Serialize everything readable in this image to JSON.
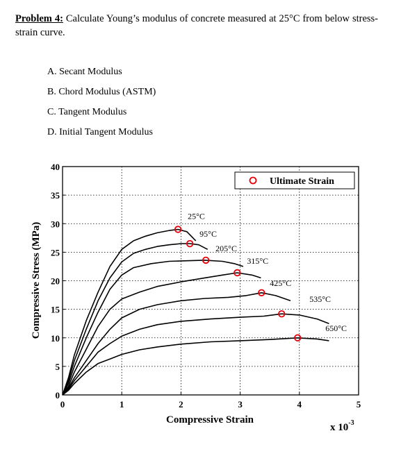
{
  "problem": {
    "lead": "Problem 4:",
    "text": " Calculate Young’s modulus of concrete measured at 25°C from below stress-strain curve."
  },
  "options": [
    "A. Secant Modulus",
    "B. Chord Modulus (ASTM)",
    "C. Tangent Modulus",
    "D. Initial Tangent Modulus"
  ],
  "chart_data": {
    "type": "line",
    "xlabel": "Compressive Strain",
    "ylabel": "Compressive Stress (MPa)",
    "x_multiplier": "x 10",
    "x_multiplier_exp": "-3",
    "xlim": [
      0,
      5
    ],
    "ylim": [
      0,
      40
    ],
    "xticks": [
      "0",
      "1",
      "2",
      "3",
      "4",
      "5"
    ],
    "yticks": [
      "0",
      "5",
      "10",
      "15",
      "20",
      "25",
      "30",
      "35",
      "40"
    ],
    "grid": true,
    "legend": {
      "label": "Ultimate Strain",
      "position": "top-right"
    },
    "colors": {
      "curve": "#000000",
      "marker": "#e8000b"
    },
    "series": [
      {
        "name": "25°C",
        "x": [
          0,
          0.1,
          0.2,
          0.4,
          0.6,
          0.8,
          1.0,
          1.2,
          1.4,
          1.6,
          1.8,
          1.95,
          2.1,
          2.25
        ],
        "y": [
          0,
          3,
          7,
          13,
          18,
          22.5,
          25.5,
          27,
          27.8,
          28.4,
          28.8,
          29,
          28.6,
          27
        ],
        "ultimate": [
          1.95,
          29
        ]
      },
      {
        "name": "95°C",
        "x": [
          0,
          0.1,
          0.2,
          0.4,
          0.6,
          0.8,
          1.0,
          1.2,
          1.4,
          1.6,
          1.8,
          2.0,
          2.15,
          2.3,
          2.45
        ],
        "y": [
          0,
          2.5,
          6,
          11.5,
          16.5,
          20.5,
          23.3,
          24.8,
          25.5,
          26,
          26.3,
          26.5,
          26.5,
          26.3,
          25.5
        ],
        "ultimate": [
          2.15,
          26.5
        ]
      },
      {
        "name": "205°C",
        "x": [
          0,
          0.1,
          0.2,
          0.4,
          0.6,
          0.8,
          1.0,
          1.2,
          1.5,
          1.8,
          2.1,
          2.4,
          2.7,
          2.9,
          3.05
        ],
        "y": [
          0,
          2,
          5,
          10,
          14.5,
          18.5,
          21,
          22.3,
          23,
          23.4,
          23.5,
          23.6,
          23.4,
          23,
          22.5
        ],
        "ultimate": [
          2.42,
          23.6
        ]
      },
      {
        "name": "315°C",
        "x": [
          0,
          0.1,
          0.2,
          0.4,
          0.6,
          0.8,
          1.0,
          1.3,
          1.6,
          2.0,
          2.4,
          2.7,
          2.95,
          3.2,
          3.35
        ],
        "y": [
          0,
          1.5,
          4,
          8,
          12,
          15,
          16.8,
          18,
          19,
          19.8,
          20.5,
          21,
          21.4,
          21,
          20.5
        ],
        "ultimate": [
          2.95,
          21.4
        ]
      },
      {
        "name": "425°C",
        "x": [
          0,
          0.1,
          0.2,
          0.4,
          0.6,
          0.8,
          1.0,
          1.3,
          1.6,
          2.0,
          2.4,
          2.8,
          3.1,
          3.36,
          3.6,
          3.85
        ],
        "y": [
          0,
          1.2,
          3,
          6,
          9,
          11.5,
          13.5,
          15,
          15.8,
          16.5,
          16.9,
          17.1,
          17.4,
          17.9,
          17.4,
          16.5
        ],
        "ultimate": [
          3.36,
          17.9
        ]
      },
      {
        "name": "535°C",
        "x": [
          0,
          0.1,
          0.2,
          0.4,
          0.6,
          0.8,
          1.0,
          1.3,
          1.6,
          2.0,
          2.5,
          3.0,
          3.4,
          3.7,
          4.0,
          4.3,
          4.5
        ],
        "y": [
          0,
          1,
          2.5,
          5,
          7.5,
          9,
          10.3,
          11.5,
          12.3,
          12.9,
          13.3,
          13.6,
          13.8,
          14.2,
          14,
          13.3,
          12.5
        ],
        "ultimate": [
          3.7,
          14.2
        ]
      },
      {
        "name": "650°C",
        "x": [
          0,
          0.1,
          0.2,
          0.4,
          0.6,
          0.8,
          1.0,
          1.3,
          1.6,
          2.0,
          2.5,
          3.0,
          3.5,
          3.97,
          4.3,
          4.5
        ],
        "y": [
          0,
          0.8,
          2,
          4,
          5.5,
          6.3,
          7.1,
          7.9,
          8.4,
          8.9,
          9.3,
          9.5,
          9.7,
          10,
          9.8,
          9.5
        ],
        "ultimate": [
          3.97,
          10
        ]
      }
    ]
  }
}
